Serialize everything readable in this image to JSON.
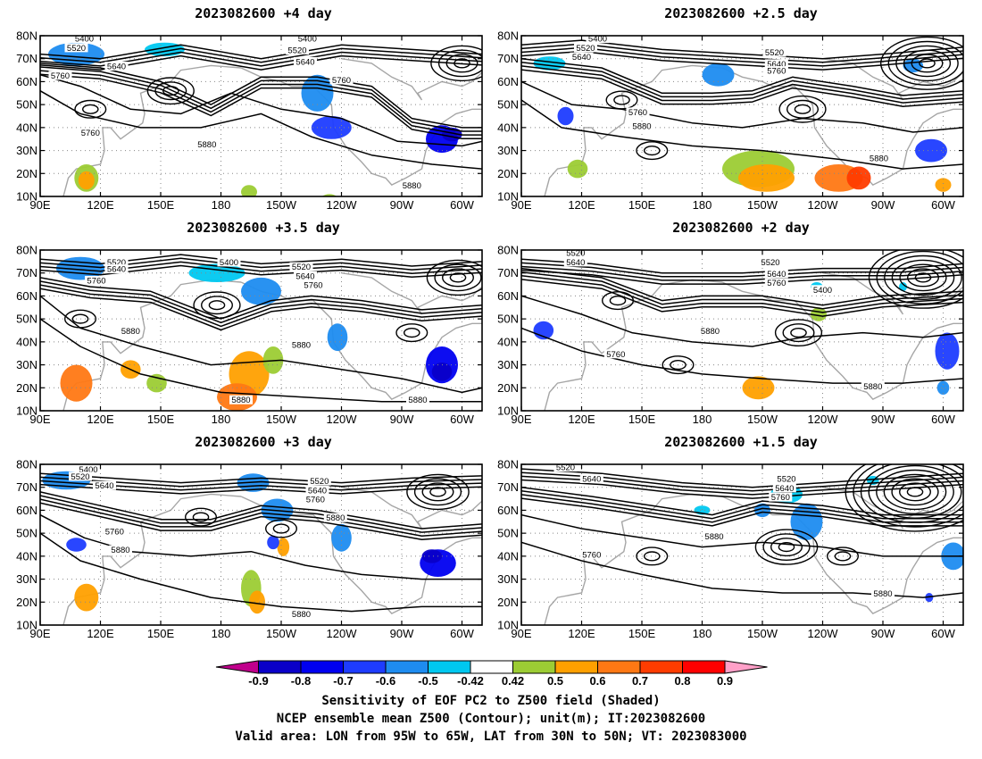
{
  "panels": [
    {
      "title": "2023082600  +4 day",
      "contour_labels": [
        "5400",
        "5520",
        "5640",
        "5760",
        "5400",
        "5520",
        "5640",
        "5760",
        "5760",
        "5880",
        "5880"
      ]
    },
    {
      "title": "2023082600  +2.5 day",
      "contour_labels": [
        "5400",
        "5520",
        "5640",
        "5520",
        "5640",
        "5760",
        "5760",
        "5880",
        "5880"
      ]
    },
    {
      "title": "2023082600  +3.5 day",
      "contour_labels": [
        "5520",
        "5640",
        "5760",
        "5400",
        "5520",
        "5640",
        "5760",
        "5880",
        "5880",
        "5880",
        "5880"
      ]
    },
    {
      "title": "2023082600  +2 day",
      "contour_labels": [
        "5520",
        "5640",
        "5520",
        "5640",
        "5760",
        "5400",
        "5880",
        "5760",
        "5880"
      ]
    },
    {
      "title": "2023082600  +3 day",
      "contour_labels": [
        "5400",
        "5520",
        "5640",
        "5520",
        "5640",
        "5760",
        "5880",
        "5760",
        "5880",
        "5880"
      ]
    },
    {
      "title": "2023082600  +1.5 day",
      "contour_labels": [
        "5520",
        "5640",
        "5520",
        "5640",
        "5760",
        "5880",
        "5760",
        "5880"
      ]
    }
  ],
  "map": {
    "lon_ticks": [
      "90E",
      "120E",
      "150E",
      "180",
      "150W",
      "120W",
      "90W",
      "60W"
    ],
    "lat_ticks": [
      "10N",
      "20N",
      "30N",
      "40N",
      "50N",
      "60N",
      "70N",
      "80N"
    ]
  },
  "colorbar": {
    "labels": [
      "-0.9",
      "-0.8",
      "-0.7",
      "-0.6",
      "-0.5",
      "-0.42",
      "0.42",
      "0.5",
      "0.6",
      "0.7",
      "0.8",
      "0.9"
    ],
    "colors": [
      "#c0008c",
      "#0a00c8",
      "#0000f0",
      "#1e3cff",
      "#1e8cf0",
      "#00c8f0",
      "#ffffff",
      "#9ccc34",
      "#ffa000",
      "#ff7814",
      "#ff3c00",
      "#ff0000",
      "#ffa0c8"
    ]
  },
  "footer": {
    "line1": "Sensitivity of EOF PC2 to Z500 field (Shaded)",
    "line2": "NCEP ensemble mean Z500 (Contour); unit(m); IT:2023082600",
    "line3": "Valid area: LON from 95W to 65W, LAT from 30N to 50N; VT: 2023083000"
  }
}
